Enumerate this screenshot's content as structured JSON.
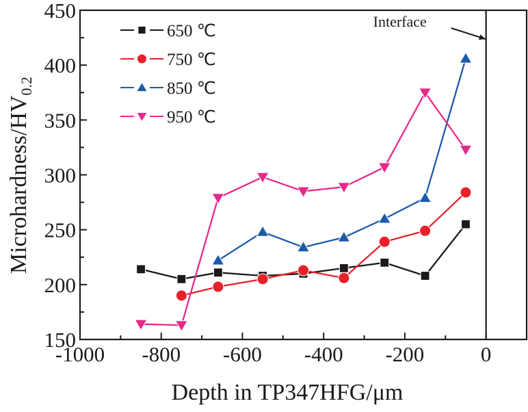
{
  "chart_data": {
    "type": "line",
    "title": "",
    "xlabel": "Depth in TP347HFG/μm",
    "ylabel": "Microhardness/HV",
    "ylabel_subscript": "0.2",
    "xlim": [
      -1000,
      100
    ],
    "ylim": [
      150,
      450
    ],
    "xticks": [
      -1000,
      -800,
      -600,
      -400,
      -200,
      0
    ],
    "xtick_labels": [
      "-1000",
      "-800",
      "-600",
      "-400",
      "-200",
      "0"
    ],
    "xminor_step": 100,
    "yticks": [
      150,
      200,
      250,
      300,
      350,
      400,
      450
    ],
    "ytick_labels": [
      "150",
      "200",
      "250",
      "300",
      "350",
      "400",
      "450"
    ],
    "yminor_step": 25,
    "grid": false,
    "legend_position": "top-left",
    "annotations": [
      {
        "text": "Interface",
        "type": "vertical-line-with-arrow",
        "x": 0
      }
    ],
    "series": [
      {
        "name": "650 ℃",
        "color": "#1a1a1a",
        "marker": "square",
        "x": [
          -850,
          -750,
          -660,
          -550,
          -450,
          -350,
          -250,
          -150,
          -50
        ],
        "values": [
          214,
          205,
          211,
          208,
          210,
          215,
          220,
          208,
          255
        ]
      },
      {
        "name": "750 ℃",
        "color": "#e8202a",
        "marker": "circle",
        "x": [
          -750,
          -660,
          -550,
          -450,
          -350,
          -250,
          -150,
          -50
        ],
        "values": [
          190,
          198,
          205,
          213,
          206,
          239,
          249,
          284
        ]
      },
      {
        "name": "850 ℃",
        "color": "#1c5aa8",
        "marker": "triangle-up",
        "x": [
          -660,
          -550,
          -450,
          -350,
          -250,
          -150,
          -50
        ],
        "values": [
          222,
          248,
          234,
          243,
          260,
          279,
          406
        ]
      },
      {
        "name": "950 ℃",
        "color": "#e62a8a",
        "marker": "triangle-down",
        "x": [
          -850,
          -750,
          -660,
          -550,
          -450,
          -350,
          -250,
          -150,
          -50
        ],
        "values": [
          164,
          163,
          279,
          298,
          285,
          289,
          307,
          375,
          323
        ]
      }
    ]
  }
}
